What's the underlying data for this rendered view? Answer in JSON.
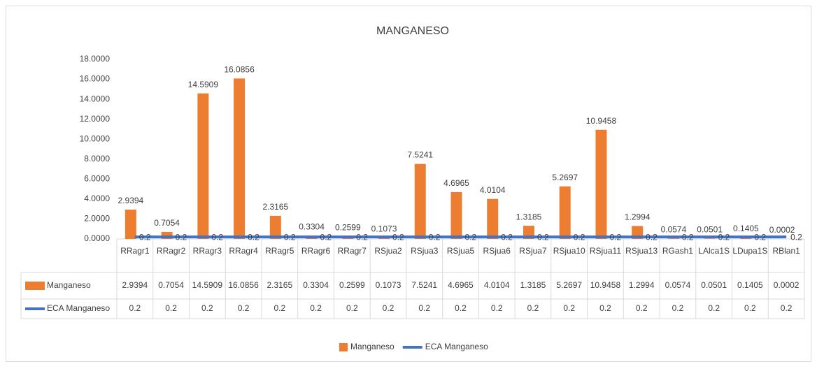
{
  "chart_data": {
    "type": "bar",
    "title": "MANGANESO",
    "categories": [
      "RRagr1",
      "RRagr2",
      "RRagr3",
      "RRagr4",
      "RRagr5",
      "RRagr6",
      "RRagr7",
      "RSjua2",
      "RSjua3",
      "RSjua5",
      "RSjua6",
      "RSjua7",
      "RSjua10",
      "RSjua11",
      "RSjua13",
      "RGash1",
      "LAlca1S",
      "LDupa1S",
      "RBlan1"
    ],
    "series": [
      {
        "name": "Manganeso",
        "type": "bar",
        "color": "#ed7d31",
        "values": [
          2.9394,
          0.7054,
          14.5909,
          16.0856,
          2.3165,
          0.3304,
          0.2599,
          0.1073,
          7.5241,
          4.6965,
          4.0104,
          1.3185,
          5.2697,
          10.9458,
          1.2994,
          0.0574,
          0.0501,
          0.1405,
          0.0002
        ]
      },
      {
        "name": "ECA Manganeso",
        "type": "line",
        "color": "#4472c4",
        "values": [
          0.2,
          0.2,
          0.2,
          0.2,
          0.2,
          0.2,
          0.2,
          0.2,
          0.2,
          0.2,
          0.2,
          0.2,
          0.2,
          0.2,
          0.2,
          0.2,
          0.2,
          0.2,
          0.2
        ]
      }
    ],
    "ylim": [
      0,
      18
    ],
    "yticks": [
      {
        "value": 0,
        "label": "0.0000"
      },
      {
        "value": 2,
        "label": "2.0000"
      },
      {
        "value": 4,
        "label": "4.0000"
      },
      {
        "value": 6,
        "label": "6.0000"
      },
      {
        "value": 8,
        "label": "8.0000"
      },
      {
        "value": 10,
        "label": "10.0000"
      },
      {
        "value": 12,
        "label": "12.0000"
      },
      {
        "value": 14,
        "label": "14.0000"
      },
      {
        "value": 16,
        "label": "16.0000"
      },
      {
        "value": 18,
        "label": "18.0000"
      }
    ],
    "grid": false,
    "data_table": true,
    "legend": "bottom"
  }
}
